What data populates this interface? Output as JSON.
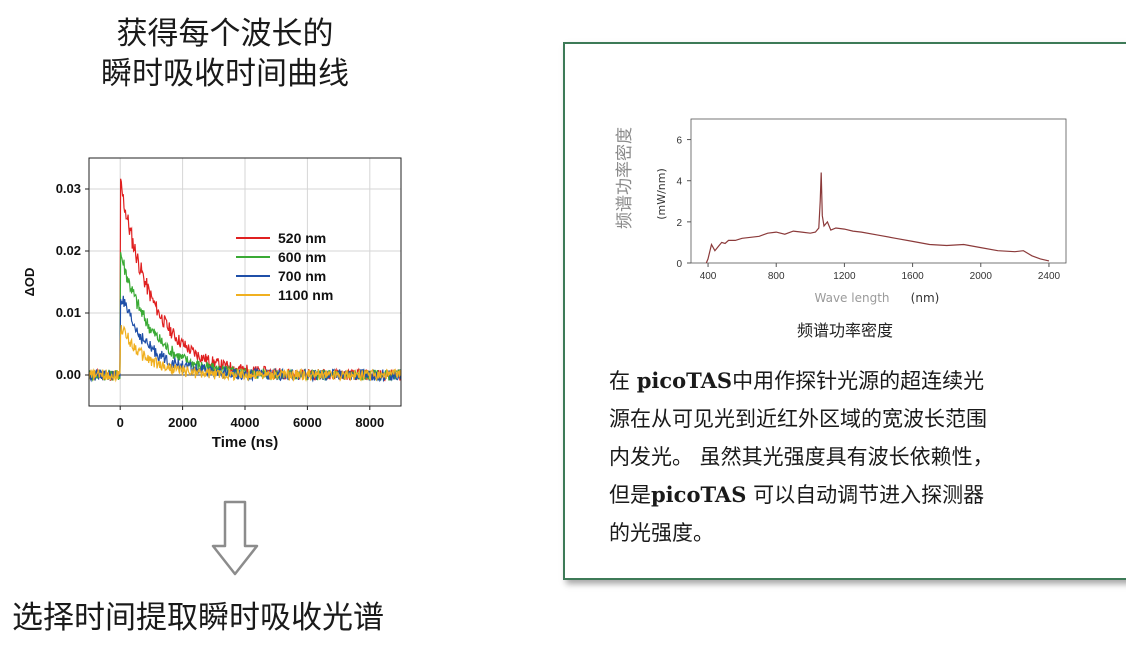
{
  "top_title": {
    "line1": "获得每个波长的",
    "line2": "瞬时吸收时间曲线"
  },
  "bottom_title": "选择时间提取瞬时吸收光谱",
  "left_chart": {
    "chart_data": {
      "type": "line",
      "xlabel": "Time (ns)",
      "ylabel": "ΔOD",
      "xlim": [
        -1000,
        9000
      ],
      "ylim": [
        -0.005,
        0.035
      ],
      "x_ticks": [
        "0",
        "2000",
        "4000",
        "6000",
        "8000"
      ],
      "y_ticks": [
        "0.00",
        "0.01",
        "0.02",
        "0.03"
      ],
      "grid": true,
      "legend": "upper-right",
      "series": [
        {
          "name": "520 nm",
          "color": "#e02020",
          "peak": 0.031,
          "tau_ns": 1100
        },
        {
          "name": "600 nm",
          "color": "#3aaa35",
          "peak": 0.02,
          "tau_ns": 1000
        },
        {
          "name": "700 nm",
          "color": "#1f4fa8",
          "peak": 0.013,
          "tau_ns": 900
        },
        {
          "name": "1100 nm",
          "color": "#f0b020",
          "peak": 0.008,
          "tau_ns": 800
        }
      ]
    }
  },
  "panel": {
    "chart_data": {
      "type": "line",
      "xlabel": "Wave length",
      "xunit": "(nm)",
      "ylabel": "频谱功率密度",
      "yunit": "(mW/nm)",
      "xlim": [
        300,
        2500
      ],
      "ylim": [
        0,
        7
      ],
      "x_ticks": [
        "400",
        "800",
        "1200",
        "1600",
        "2000",
        "2400"
      ],
      "y_ticks": [
        "0",
        "2",
        "4",
        "6"
      ],
      "series": [
        {
          "color": "#8b3a3a",
          "x": [
            390,
            400,
            420,
            440,
            460,
            480,
            500,
            520,
            560,
            600,
            650,
            700,
            750,
            800,
            850,
            900,
            950,
            1000,
            1030,
            1050,
            1058,
            1064,
            1070,
            1080,
            1100,
            1120,
            1150,
            1200,
            1250,
            1300,
            1400,
            1500,
            1600,
            1700,
            1800,
            1900,
            2000,
            2100,
            2200,
            2250,
            2300,
            2350,
            2400
          ],
          "values": [
            0.0,
            0.2,
            0.9,
            0.6,
            0.8,
            1.0,
            0.95,
            1.1,
            1.1,
            1.2,
            1.25,
            1.3,
            1.45,
            1.5,
            1.4,
            1.55,
            1.5,
            1.45,
            1.5,
            1.7,
            3.0,
            4.4,
            2.3,
            1.8,
            2.0,
            1.6,
            1.7,
            1.65,
            1.55,
            1.5,
            1.35,
            1.2,
            1.05,
            0.9,
            0.85,
            0.9,
            0.75,
            0.6,
            0.55,
            0.6,
            0.35,
            0.2,
            0.1
          ]
        }
      ]
    },
    "caption": "频谱功率密度",
    "description": {
      "line1_pre": "在 ",
      "line1_brand": "picoTAS",
      "line1_post": "中用作探针光源的超连续光",
      "line2": "源在从可见光到近红外区域的宽波长范围",
      "line3": "内发光。 虽然其光强度具有波长依赖性，",
      "line4_pre": "但是",
      "line4_brand": "picoTAS",
      "line4_post": " 可以自动调节进入探测器",
      "line5": "的光强度。"
    }
  },
  "arrow_icon": "down-arrow-icon"
}
